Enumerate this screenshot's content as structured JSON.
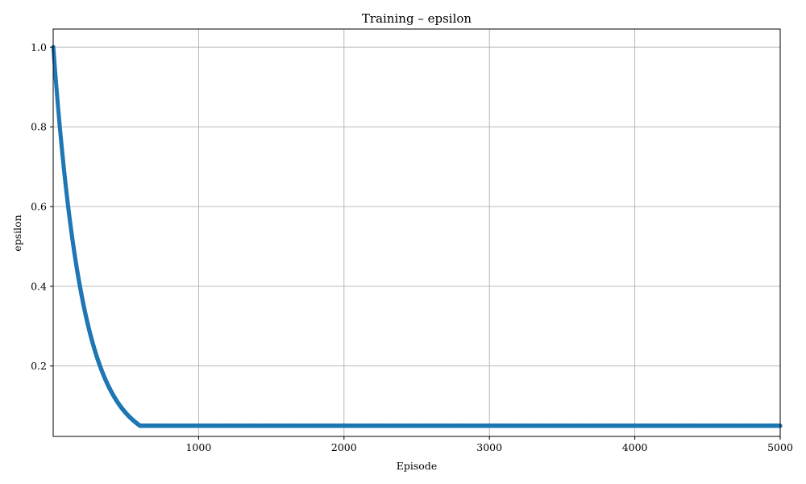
{
  "chart_data": {
    "type": "scatter",
    "title": "Training – epsilon",
    "xlabel": "Episode",
    "ylabel": "epsilon",
    "xlim": [
      0,
      5000
    ],
    "ylim": [
      0.0234,
      1.0453
    ],
    "xticks": [
      1000,
      2000,
      3000,
      4000,
      5000
    ],
    "yticks": [
      0.2,
      0.4,
      0.6,
      0.8,
      1.0
    ],
    "xtick_labels": [
      "1000",
      "2000",
      "3000",
      "4000",
      "5000"
    ],
    "ytick_labels": [
      "0.2",
      "0.4",
      "0.6",
      "0.8",
      "1.0"
    ],
    "grid": true,
    "color": "#1f77b4",
    "series": [
      {
        "points_rule": "epsilon = max(0.05, 0.995^(episode-1)) for episode 1..5000",
        "decay": 0.995,
        "start": 1.0,
        "floor": 0.05,
        "episodes": [
          1,
          5000
        ]
      }
    ]
  }
}
